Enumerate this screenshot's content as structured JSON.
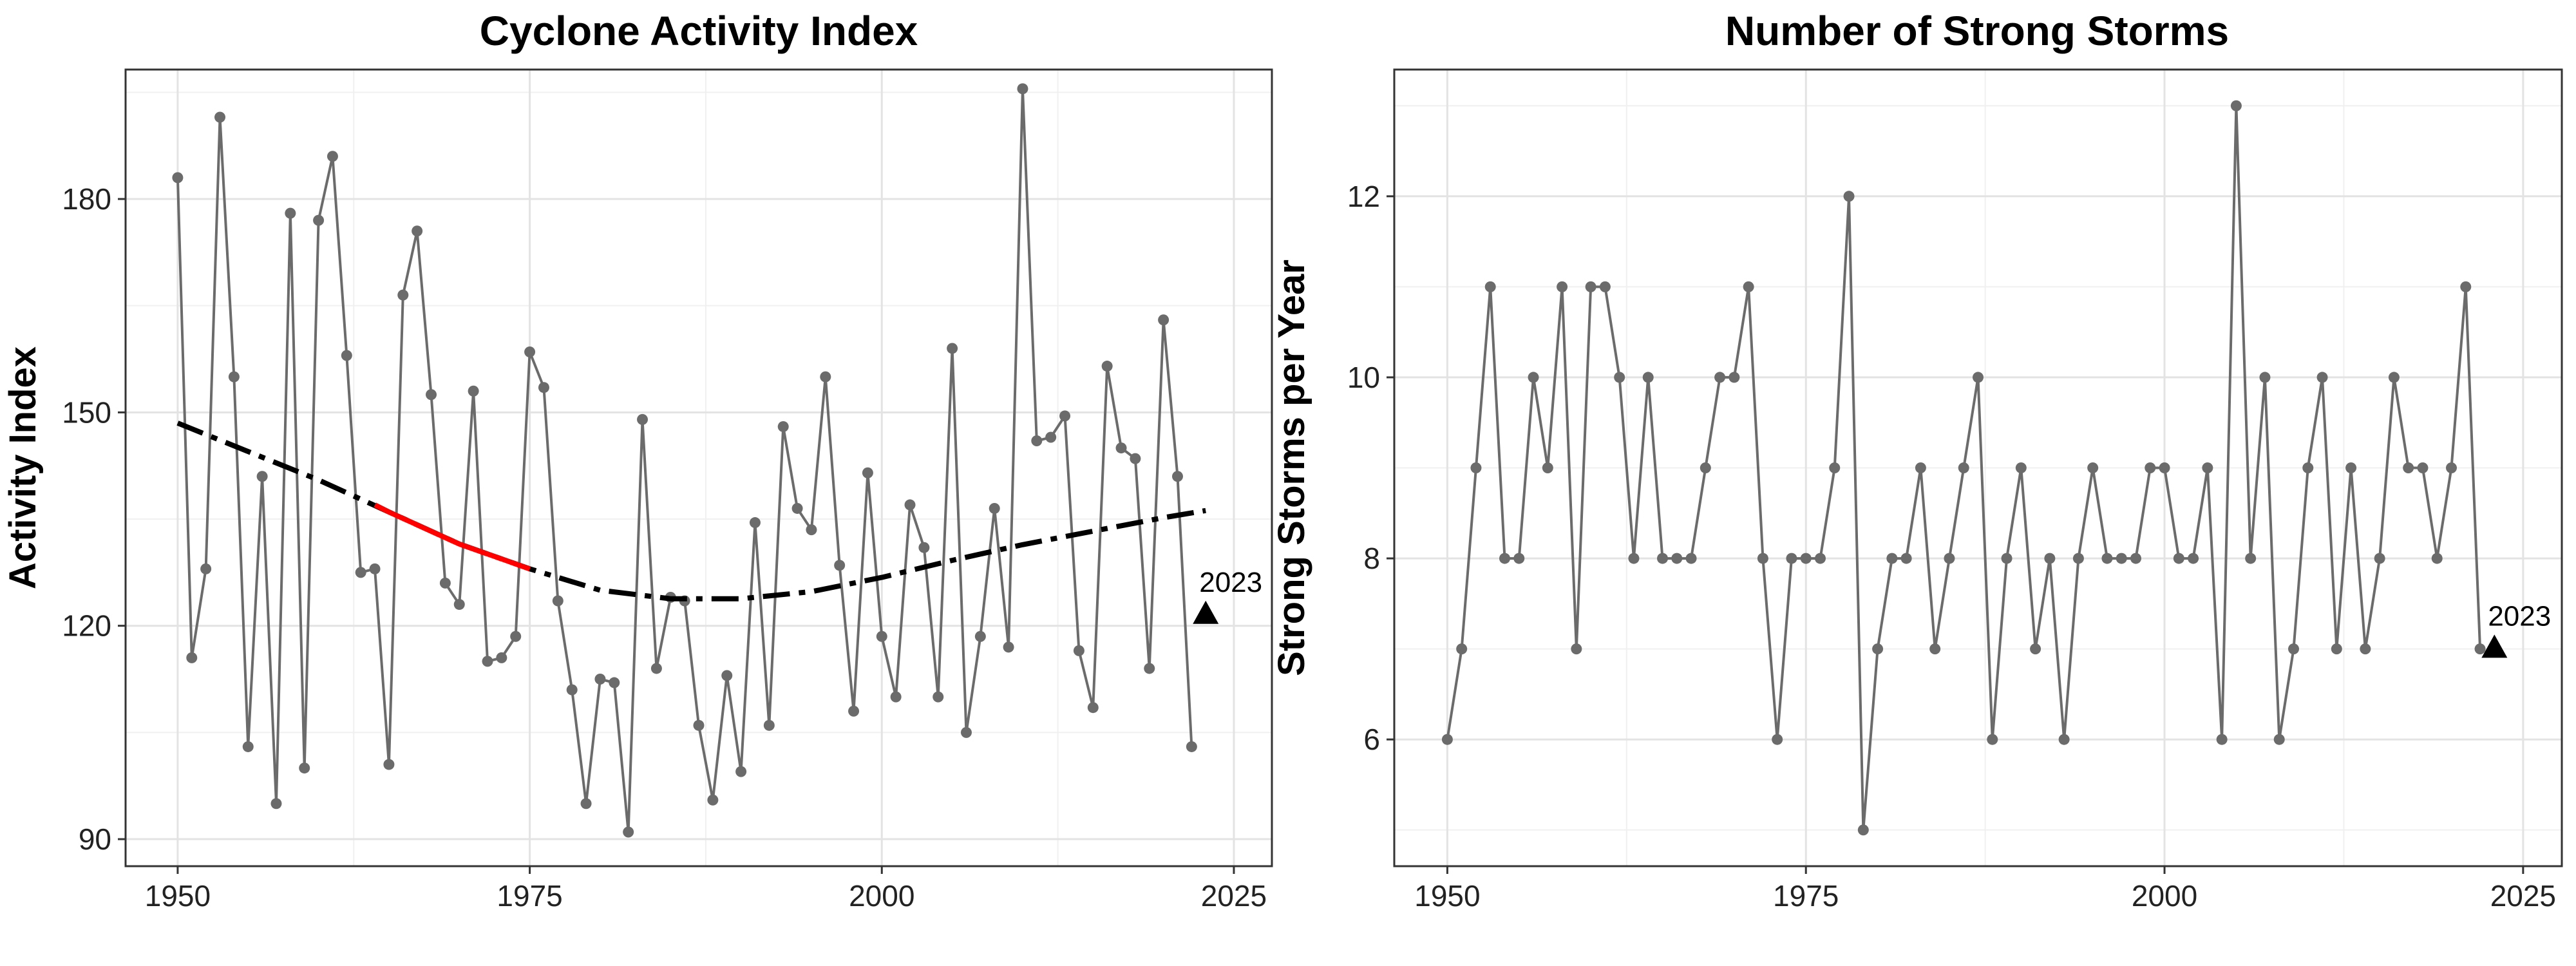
{
  "chart_data": [
    {
      "type": "line",
      "title": "Cyclone Activity Index",
      "xlabel": "",
      "ylabel": "Activity Index",
      "xlim": [
        1946.3,
        2027.7
      ],
      "ylim": [
        86.2,
        198.2
      ],
      "xticks": [
        1950,
        1975,
        2000,
        2025
      ],
      "xtick_labels": [
        "1950",
        "1975",
        "2000",
        "2025"
      ],
      "yticks": [
        90,
        120,
        150,
        180
      ],
      "ytick_labels": [
        "90",
        "120",
        "150",
        "180"
      ],
      "grid": true,
      "series": [
        {
          "color": "#6b6b6b",
          "x": [
            1950,
            1951,
            1952,
            1953,
            1954,
            1955,
            1956,
            1957,
            1958,
            1959,
            1960,
            1961,
            1962,
            1963,
            1964,
            1965,
            1966,
            1967,
            1968,
            1969,
            1970,
            1971,
            1972,
            1973,
            1974,
            1975,
            1976,
            1977,
            1978,
            1979,
            1980,
            1981,
            1982,
            1983,
            1984,
            1985,
            1986,
            1987,
            1988,
            1989,
            1990,
            1991,
            1992,
            1993,
            1994,
            1995,
            1996,
            1997,
            1998,
            1999,
            2000,
            2001,
            2002,
            2003,
            2004,
            2005,
            2006,
            2007,
            2008,
            2009,
            2010,
            2011,
            2012,
            2013,
            2014,
            2015,
            2016,
            2017,
            2018,
            2019,
            2020,
            2021,
            2022
          ],
          "y": [
            183,
            115.5,
            128,
            191.5,
            155,
            103,
            141,
            95,
            178,
            100,
            177,
            186,
            158,
            127.5,
            128,
            100.5,
            166.5,
            175.5,
            152.5,
            126,
            123,
            153,
            115,
            115.5,
            118.5,
            158.5,
            153.5,
            123.5,
            111,
            95,
            112.5,
            112,
            91,
            149,
            114,
            124,
            123.5,
            106,
            95.5,
            113,
            99.5,
            134.5,
            106,
            148,
            136.5,
            133.5,
            155,
            128.5,
            108,
            141.5,
            118.5,
            110,
            137,
            131,
            110,
            159,
            105,
            118.5,
            136.5,
            117,
            195.5,
            146,
            146.5,
            149.5,
            116.5,
            108.5,
            156.5,
            145,
            143.5,
            114,
            163,
            141,
            103
          ]
        },
        {
          "type": "trend",
          "color": "#000000",
          "style": "dash-dot",
          "x": [
            1950,
            1955,
            1960,
            1965,
            1970,
            1975,
            1980,
            1985,
            1990,
            1995,
            2000,
            2005,
            2010,
            2015,
            2020,
            2023
          ],
          "y": [
            148.5,
            144.5,
            140.5,
            136,
            131.5,
            128,
            125,
            123.8,
            123.8,
            124.8,
            126.8,
            129.2,
            131.4,
            133.3,
            135.2,
            136.2
          ]
        },
        {
          "type": "highlight",
          "color": "#ff0000",
          "x": [
            1964,
            1965,
            1970,
            1975
          ],
          "y": [
            137,
            136,
            131.5,
            128
          ]
        }
      ],
      "marker": {
        "shape": "triangle",
        "x": 2023,
        "y": 121.5,
        "label": "2023",
        "color": "#000000"
      }
    },
    {
      "type": "line",
      "title": "Number of Strong Storms",
      "xlabel": "",
      "ylabel": "Strong Storms per Year",
      "xlim": [
        1946.3,
        2027.7
      ],
      "ylim": [
        4.6,
        13.4
      ],
      "xticks": [
        1950,
        1975,
        2000,
        2025
      ],
      "xtick_labels": [
        "1950",
        "1975",
        "2000",
        "2025"
      ],
      "yticks": [
        6,
        8,
        10,
        12
      ],
      "ytick_labels": [
        "6",
        "8",
        "10",
        "12"
      ],
      "grid": true,
      "series": [
        {
          "color": "#6b6b6b",
          "x": [
            1950,
            1951,
            1952,
            1953,
            1954,
            1955,
            1956,
            1957,
            1958,
            1959,
            1960,
            1961,
            1962,
            1963,
            1964,
            1965,
            1966,
            1967,
            1968,
            1969,
            1970,
            1971,
            1972,
            1973,
            1974,
            1975,
            1976,
            1977,
            1978,
            1979,
            1980,
            1981,
            1982,
            1983,
            1984,
            1985,
            1986,
            1987,
            1988,
            1989,
            1990,
            1991,
            1992,
            1993,
            1994,
            1995,
            1996,
            1997,
            1998,
            1999,
            2000,
            2001,
            2002,
            2003,
            2004,
            2005,
            2006,
            2007,
            2008,
            2009,
            2010,
            2011,
            2012,
            2013,
            2014,
            2015,
            2016,
            2017,
            2018,
            2019,
            2020,
            2021,
            2022
          ],
          "y": [
            6,
            7,
            9,
            11,
            8,
            8,
            10,
            9,
            11,
            7,
            11,
            11,
            10,
            8,
            10,
            8,
            8,
            8,
            9,
            10,
            10,
            11,
            8,
            6,
            8,
            8,
            8,
            9,
            12,
            5,
            7,
            8,
            8,
            9,
            7,
            8,
            9,
            10,
            6,
            8,
            9,
            7,
            8,
            6,
            8,
            9,
            8,
            8,
            8,
            9,
            9,
            8,
            8,
            9,
            6,
            13,
            8,
            10,
            6,
            7,
            9,
            10,
            7,
            9,
            7,
            8,
            10,
            9,
            9,
            8,
            9,
            11,
            7
          ]
        }
      ],
      "marker": {
        "shape": "triangle",
        "x": 2023,
        "y": 7,
        "label": "2023",
        "color": "#000000"
      }
    }
  ]
}
